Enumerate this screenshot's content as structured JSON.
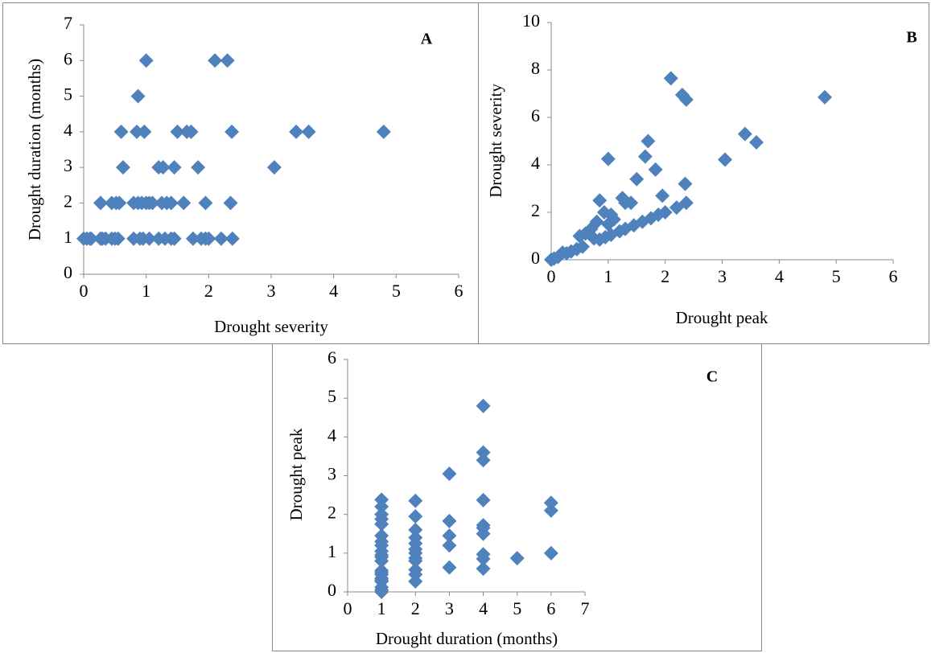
{
  "chart_data": [
    {
      "type": "scatter",
      "label": "A",
      "x_label": "Drought severity",
      "y_label": "Drought duration (months)",
      "color": "#4f81bd",
      "xlim": [
        0,
        6
      ],
      "xticks": [
        0,
        1,
        2,
        3,
        4,
        5,
        6
      ],
      "ylim": [
        0,
        7
      ],
      "yticks": [
        0,
        1,
        2,
        3,
        4,
        5,
        6,
        7
      ],
      "x": [
        1.0,
        2.1,
        2.3,
        0.87,
        0.6,
        0.85,
        0.97,
        1.5,
        1.65,
        1.72,
        2.37,
        3.4,
        3.6,
        4.8,
        0.63,
        1.2,
        1.27,
        1.45,
        1.83,
        3.05,
        0.27,
        0.45,
        0.52,
        0.57,
        0.8,
        0.87,
        0.93,
        1.0,
        1.05,
        1.1,
        1.25,
        1.33,
        1.4,
        1.6,
        1.95,
        2.35,
        0.0,
        0.05,
        0.1,
        0.12,
        0.27,
        0.3,
        0.35,
        0.45,
        0.5,
        0.55,
        0.8,
        0.9,
        0.95,
        1.05,
        1.2,
        1.3,
        1.4,
        1.45,
        1.75,
        1.88,
        1.95,
        2.0,
        2.2,
        2.38
      ],
      "values": [
        6,
        6,
        6,
        5,
        4,
        4,
        4,
        4,
        4,
        4,
        4,
        4,
        4,
        4,
        3,
        3,
        3,
        3,
        3,
        3,
        2,
        2,
        2,
        2,
        2,
        2,
        2,
        2,
        2,
        2,
        2,
        2,
        2,
        2,
        2,
        2,
        1,
        1,
        1,
        1,
        1,
        1,
        1,
        1,
        1,
        1,
        1,
        1,
        1,
        1,
        1,
        1,
        1,
        1,
        1,
        1,
        1,
        1,
        1,
        1
      ]
    },
    {
      "type": "scatter",
      "label": "B",
      "x_label": "Drought peak",
      "y_label": "Drought severity",
      "color": "#4f81bd",
      "xlim": [
        0,
        6
      ],
      "xticks": [
        0,
        1,
        2,
        3,
        4,
        5,
        6
      ],
      "ylim": [
        0,
        10
      ],
      "yticks": [
        0,
        2,
        4,
        6,
        8,
        10
      ],
      "x": [
        2.1,
        2.3,
        2.37,
        4.8,
        3.4,
        3.6,
        3.05,
        1.0,
        1.7,
        1.65,
        1.5,
        1.83,
        1.95,
        2.35,
        0.85,
        1.25,
        1.3,
        1.4,
        0.93,
        1.05,
        1.1,
        1.0,
        2.37,
        2.2,
        2.0,
        1.88,
        1.75,
        1.6,
        1.45,
        1.3,
        1.2,
        1.05,
        0.95,
        0.85,
        0.75,
        0.6,
        0.5,
        0.55,
        0.45,
        0.35,
        0.27,
        0.2,
        0.12,
        0.05,
        0.0,
        0.8,
        0.7
      ],
      "values": [
        7.65,
        6.95,
        6.75,
        6.85,
        5.3,
        4.95,
        4.22,
        4.25,
        5.0,
        4.35,
        3.4,
        3.8,
        2.7,
        3.2,
        2.5,
        2.6,
        2.4,
        2.4,
        2.0,
        1.9,
        1.7,
        1.5,
        2.4,
        2.2,
        2.0,
        1.9,
        1.75,
        1.6,
        1.45,
        1.3,
        1.2,
        1.05,
        0.95,
        0.85,
        0.9,
        1.1,
        1.0,
        0.55,
        0.45,
        0.35,
        0.27,
        0.3,
        0.12,
        0.05,
        0.0,
        1.6,
        1.3
      ]
    },
    {
      "type": "scatter",
      "label": "C",
      "x_label": "Drought duration (months)",
      "y_label": "Drought peak",
      "color": "#4f81bd",
      "xlim": [
        0,
        7
      ],
      "xticks": [
        0,
        1,
        2,
        3,
        4,
        5,
        6,
        7
      ],
      "ylim": [
        0,
        6
      ],
      "yticks": [
        0,
        1,
        2,
        3,
        4,
        5,
        6
      ],
      "x": [
        1,
        1,
        1,
        1,
        1,
        1,
        1,
        1,
        1,
        1,
        1,
        1,
        1,
        1,
        1,
        1,
        1,
        1,
        1,
        1,
        1,
        2,
        2,
        2,
        2,
        2,
        2,
        2,
        2,
        2,
        2,
        2,
        2,
        3,
        3,
        3,
        3,
        3,
        4,
        4,
        4,
        4,
        4,
        4,
        4,
        4,
        4,
        4,
        5,
        6,
        6,
        6
      ],
      "values": [
        2.38,
        2.2,
        2.0,
        1.88,
        1.75,
        1.45,
        1.3,
        1.2,
        1.05,
        0.95,
        0.9,
        0.8,
        0.55,
        0.5,
        0.45,
        0.35,
        0.3,
        0.27,
        0.12,
        0.05,
        0.0,
        2.35,
        1.95,
        1.6,
        1.4,
        1.25,
        1.1,
        1.0,
        0.87,
        0.8,
        0.57,
        0.45,
        0.27,
        3.05,
        1.83,
        1.45,
        1.2,
        0.63,
        4.8,
        3.6,
        3.4,
        2.37,
        1.72,
        1.65,
        1.5,
        0.97,
        0.85,
        0.6,
        0.87,
        2.3,
        2.1,
        1.0
      ]
    }
  ]
}
